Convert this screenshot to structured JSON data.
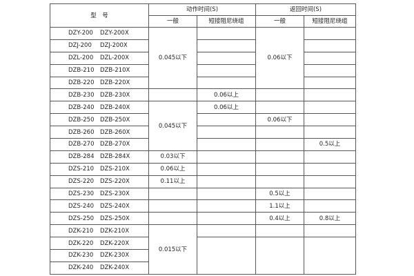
{
  "header": {
    "model": "型　号",
    "action_time": "动作时间(S)",
    "return_time": "返回时间(S)",
    "general": "一般",
    "short_damping": "短接阻尼绕组"
  },
  "rows": [
    {
      "a": "DZY-200",
      "b": "DZY-200X",
      "cells": [
        {
          "v": "0.045以下",
          "rs": 5
        },
        {
          "v": ""
        },
        {
          "v": "0.06以下",
          "rs": 5
        },
        {
          "v": ""
        }
      ]
    },
    {
      "a": "DZJ-200",
      "b": "DZJ-200X",
      "cells": [
        {
          "v": ""
        },
        {
          "v": ""
        }
      ]
    },
    {
      "a": "DZL-200",
      "b": "DZL-200X",
      "cells": [
        {
          "v": ""
        },
        {
          "v": ""
        }
      ]
    },
    {
      "a": "DZB-210",
      "b": "DZB-210X",
      "cells": [
        {
          "v": ""
        },
        {
          "v": ""
        }
      ]
    },
    {
      "a": "DZB-220",
      "b": "DZB-220X",
      "cells": [
        {
          "v": ""
        },
        {
          "v": ""
        }
      ]
    },
    {
      "a": "DZB-230",
      "b": "DZB-230X",
      "cells": [
        {
          "v": ""
        },
        {
          "v": "0.06以上"
        },
        {
          "v": ""
        },
        {
          "v": ""
        }
      ]
    },
    {
      "a": "DZB-240",
      "b": "DZB-240X",
      "cells": [
        {
          "v": "0.045以下",
          "rs": 4
        },
        {
          "v": "0.06以上"
        },
        {
          "v": ""
        },
        {
          "v": ""
        }
      ]
    },
    {
      "a": "DZB-250",
      "b": "DZB-250X",
      "cells": [
        {
          "v": ""
        },
        {
          "v": "0.06以下"
        },
        {
          "v": ""
        }
      ]
    },
    {
      "a": "DZB-260",
      "b": "DZB-260X",
      "cells": [
        {
          "v": ""
        },
        {
          "v": ""
        },
        {
          "v": ""
        }
      ]
    },
    {
      "a": "DZB-270",
      "b": "DZB-270X",
      "cells": [
        {
          "v": ""
        },
        {
          "v": ""
        },
        {
          "v": "0.5以上"
        }
      ]
    },
    {
      "a": "DZB-284",
      "b": "DZB-284X",
      "cells": [
        {
          "v": "0.03以下"
        },
        {
          "v": ""
        },
        {
          "v": ""
        },
        {
          "v": ""
        }
      ]
    },
    {
      "a": "DZS-210",
      "b": "DZS-210X",
      "cells": [
        {
          "v": "0.06以上"
        },
        {
          "v": ""
        },
        {
          "v": ""
        },
        {
          "v": ""
        }
      ]
    },
    {
      "a": "DZS-220",
      "b": "DZS-220X",
      "cells": [
        {
          "v": "0.11以上"
        },
        {
          "v": ""
        },
        {
          "v": ""
        },
        {
          "v": ""
        }
      ]
    },
    {
      "a": "DZS-230",
      "b": "DZS-230X",
      "cells": [
        {
          "v": ""
        },
        {
          "v": ""
        },
        {
          "v": "0.5以上"
        },
        {
          "v": ""
        }
      ]
    },
    {
      "a": "DZS-240",
      "b": "DZS-240X",
      "cells": [
        {
          "v": ""
        },
        {
          "v": ""
        },
        {
          "v": "1.1以上"
        },
        {
          "v": ""
        }
      ]
    },
    {
      "a": "DZS-250",
      "b": "DZS-250X",
      "cells": [
        {
          "v": ""
        },
        {
          "v": ""
        },
        {
          "v": "0.4以上"
        },
        {
          "v": "0.8以上"
        }
      ]
    },
    {
      "a": "DZK-210",
      "b": "DZK-210X",
      "cells": [
        {
          "v": "0.015以下",
          "rs": 4
        },
        {
          "v": ""
        },
        {
          "v": ""
        },
        {
          "v": ""
        }
      ]
    },
    {
      "a": "DZK-220",
      "b": "DZK-220X",
      "cells": [
        {
          "v": "",
          "rs": 3
        },
        {
          "v": "",
          "rs": 3
        },
        {
          "v": "",
          "rs": 3
        }
      ]
    },
    {
      "a": "DZK-230",
      "b": "DZK-230X",
      "cells": []
    },
    {
      "a": "DZK-240",
      "b": "DZK-240X",
      "cells": []
    }
  ]
}
